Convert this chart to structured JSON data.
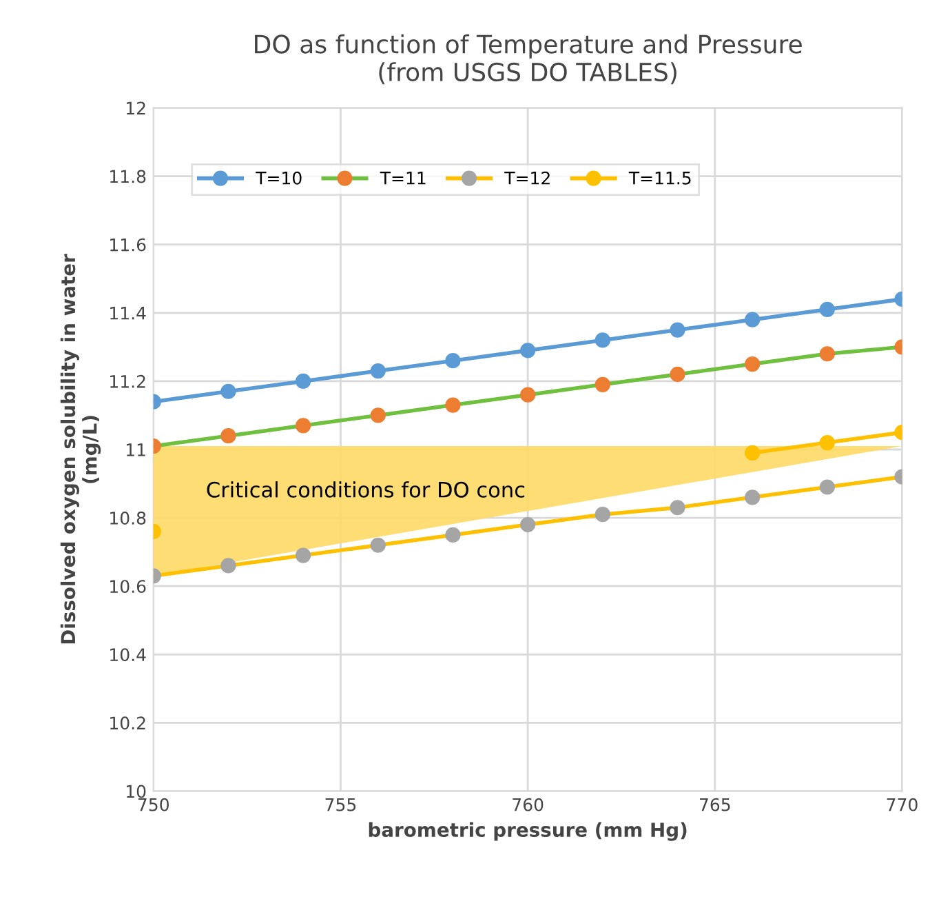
{
  "chart_data": {
    "type": "line",
    "title": "DO as function of Temperature and Pressure\n(from USGS DO TABLES)",
    "xlabel": "barometric pressure (mm Hg)",
    "ylabel": "Dissolved oxygen solubility in water\n(mg/L)",
    "x": [
      750,
      752,
      754,
      756,
      758,
      760,
      762,
      764,
      766,
      768,
      770
    ],
    "series": [
      {
        "name": "T=10",
        "color": "#5b9bd5",
        "colors": [
          "#5b9bd5",
          "#5b9bd5",
          "#5b9bd5",
          "#5b9bd5",
          "#5b9bd5",
          "#5b9bd5",
          "#5b9bd5",
          "#5b9bd5",
          "#5b9bd5",
          "#5b9bd5",
          "#5b9bd5"
        ],
        "values": [
          11.14,
          11.17,
          11.2,
          11.23,
          11.26,
          11.29,
          11.32,
          11.35,
          11.38,
          11.41,
          11.44
        ]
      },
      {
        "name": "T=11",
        "color": "#70c040",
        "colors": [
          "#ed7d31",
          "#ed7d31",
          "#ed7d31",
          "#ed7d31",
          "#ed7d31",
          "#ed7d31",
          "#ed7d31",
          "#ed7d31",
          "#ed7d31",
          "#ed7d31",
          "#ed7d31"
        ],
        "values": [
          11.01,
          11.04,
          11.07,
          11.1,
          11.13,
          11.16,
          11.19,
          11.22,
          11.25,
          11.28,
          11.3
        ]
      },
      {
        "name": "T=12",
        "color": "#ffc000",
        "colors": [
          "#a5a5a5",
          "#a5a5a5",
          "#a5a5a5",
          "#a5a5a5",
          "#a5a5a5",
          "#a5a5a5",
          "#a5a5a5",
          "#a5a5a5",
          "#a5a5a5",
          "#a5a5a5",
          "#a5a5a5"
        ],
        "values": [
          10.63,
          10.66,
          10.69,
          10.72,
          10.75,
          10.78,
          10.81,
          10.83,
          10.86,
          10.89,
          10.92
        ]
      },
      {
        "name": "T=11.5",
        "color": "#ffc000",
        "colors": [
          "#ffc000",
          "#ffc000",
          "#ffc000",
          "#ffc000",
          "#ffc000",
          "#ffc000",
          "#ffc000",
          "#ffc000",
          "#ffc000",
          "#ffc000",
          "#ffc000"
        ],
        "values": [
          10.76,
          null,
          null,
          null,
          null,
          null,
          null,
          null,
          10.99,
          11.02,
          11.05
        ]
      }
    ],
    "annotations": [
      "Critical conditions for DO conc"
    ],
    "xlim": [
      750,
      770
    ],
    "xticks": [
      750,
      755,
      760,
      765,
      770
    ],
    "ylim": [
      10,
      12
    ],
    "yticks": [
      10,
      10.2,
      10.4,
      10.6,
      10.8,
      11,
      11.2,
      11.4,
      11.6,
      11.8,
      12
    ],
    "grid": true,
    "legend": "top left",
    "marker": "circle",
    "line_style": "solid"
  }
}
